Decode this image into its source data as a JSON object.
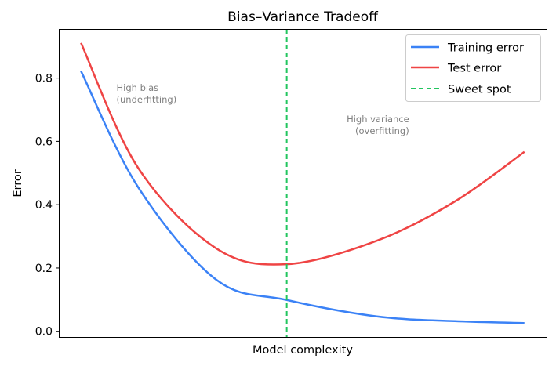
{
  "chart_data": {
    "type": "line",
    "title": "Bias–Variance Tradeoff",
    "xlabel": "Model complexity",
    "ylabel": "Error",
    "xlim": [
      -0.5,
      10.5
    ],
    "ylim": [
      -0.018,
      0.955
    ],
    "yticks": [
      0.0,
      0.2,
      0.4,
      0.6,
      0.8
    ],
    "ytick_labels": [
      "0.0",
      "0.2",
      "0.4",
      "0.6",
      "0.8"
    ],
    "grid": false,
    "legend_placement": "top-right",
    "series": [
      {
        "name": "Training error",
        "color": "#3b82f6",
        "style": "solid",
        "x": [
          0,
          1.29,
          3.05,
          4.64,
          6.67,
          8.43,
          10
        ],
        "y": [
          0.822,
          0.455,
          0.163,
          0.099,
          0.047,
          0.032,
          0.026
        ]
      },
      {
        "name": "Test error",
        "color": "#ef4444",
        "style": "solid",
        "x": [
          0,
          1.29,
          3.05,
          4.64,
          6.67,
          8.43,
          10
        ],
        "y": [
          0.911,
          0.516,
          0.262,
          0.212,
          0.286,
          0.41,
          0.567
        ]
      }
    ],
    "vline": {
      "name": "Sweet spot",
      "x": 4.64,
      "color": "#22c55e",
      "style": "dashed"
    },
    "annotations": [
      {
        "lines": [
          "High bias",
          "(underfitting)"
        ],
        "x": 0.8,
        "y": 0.76,
        "align": "left"
      },
      {
        "lines": [
          "High variance",
          "(overfitting)"
        ],
        "x": 7.4,
        "y": 0.66,
        "align": "right"
      }
    ],
    "annotation_color": "#808080"
  }
}
